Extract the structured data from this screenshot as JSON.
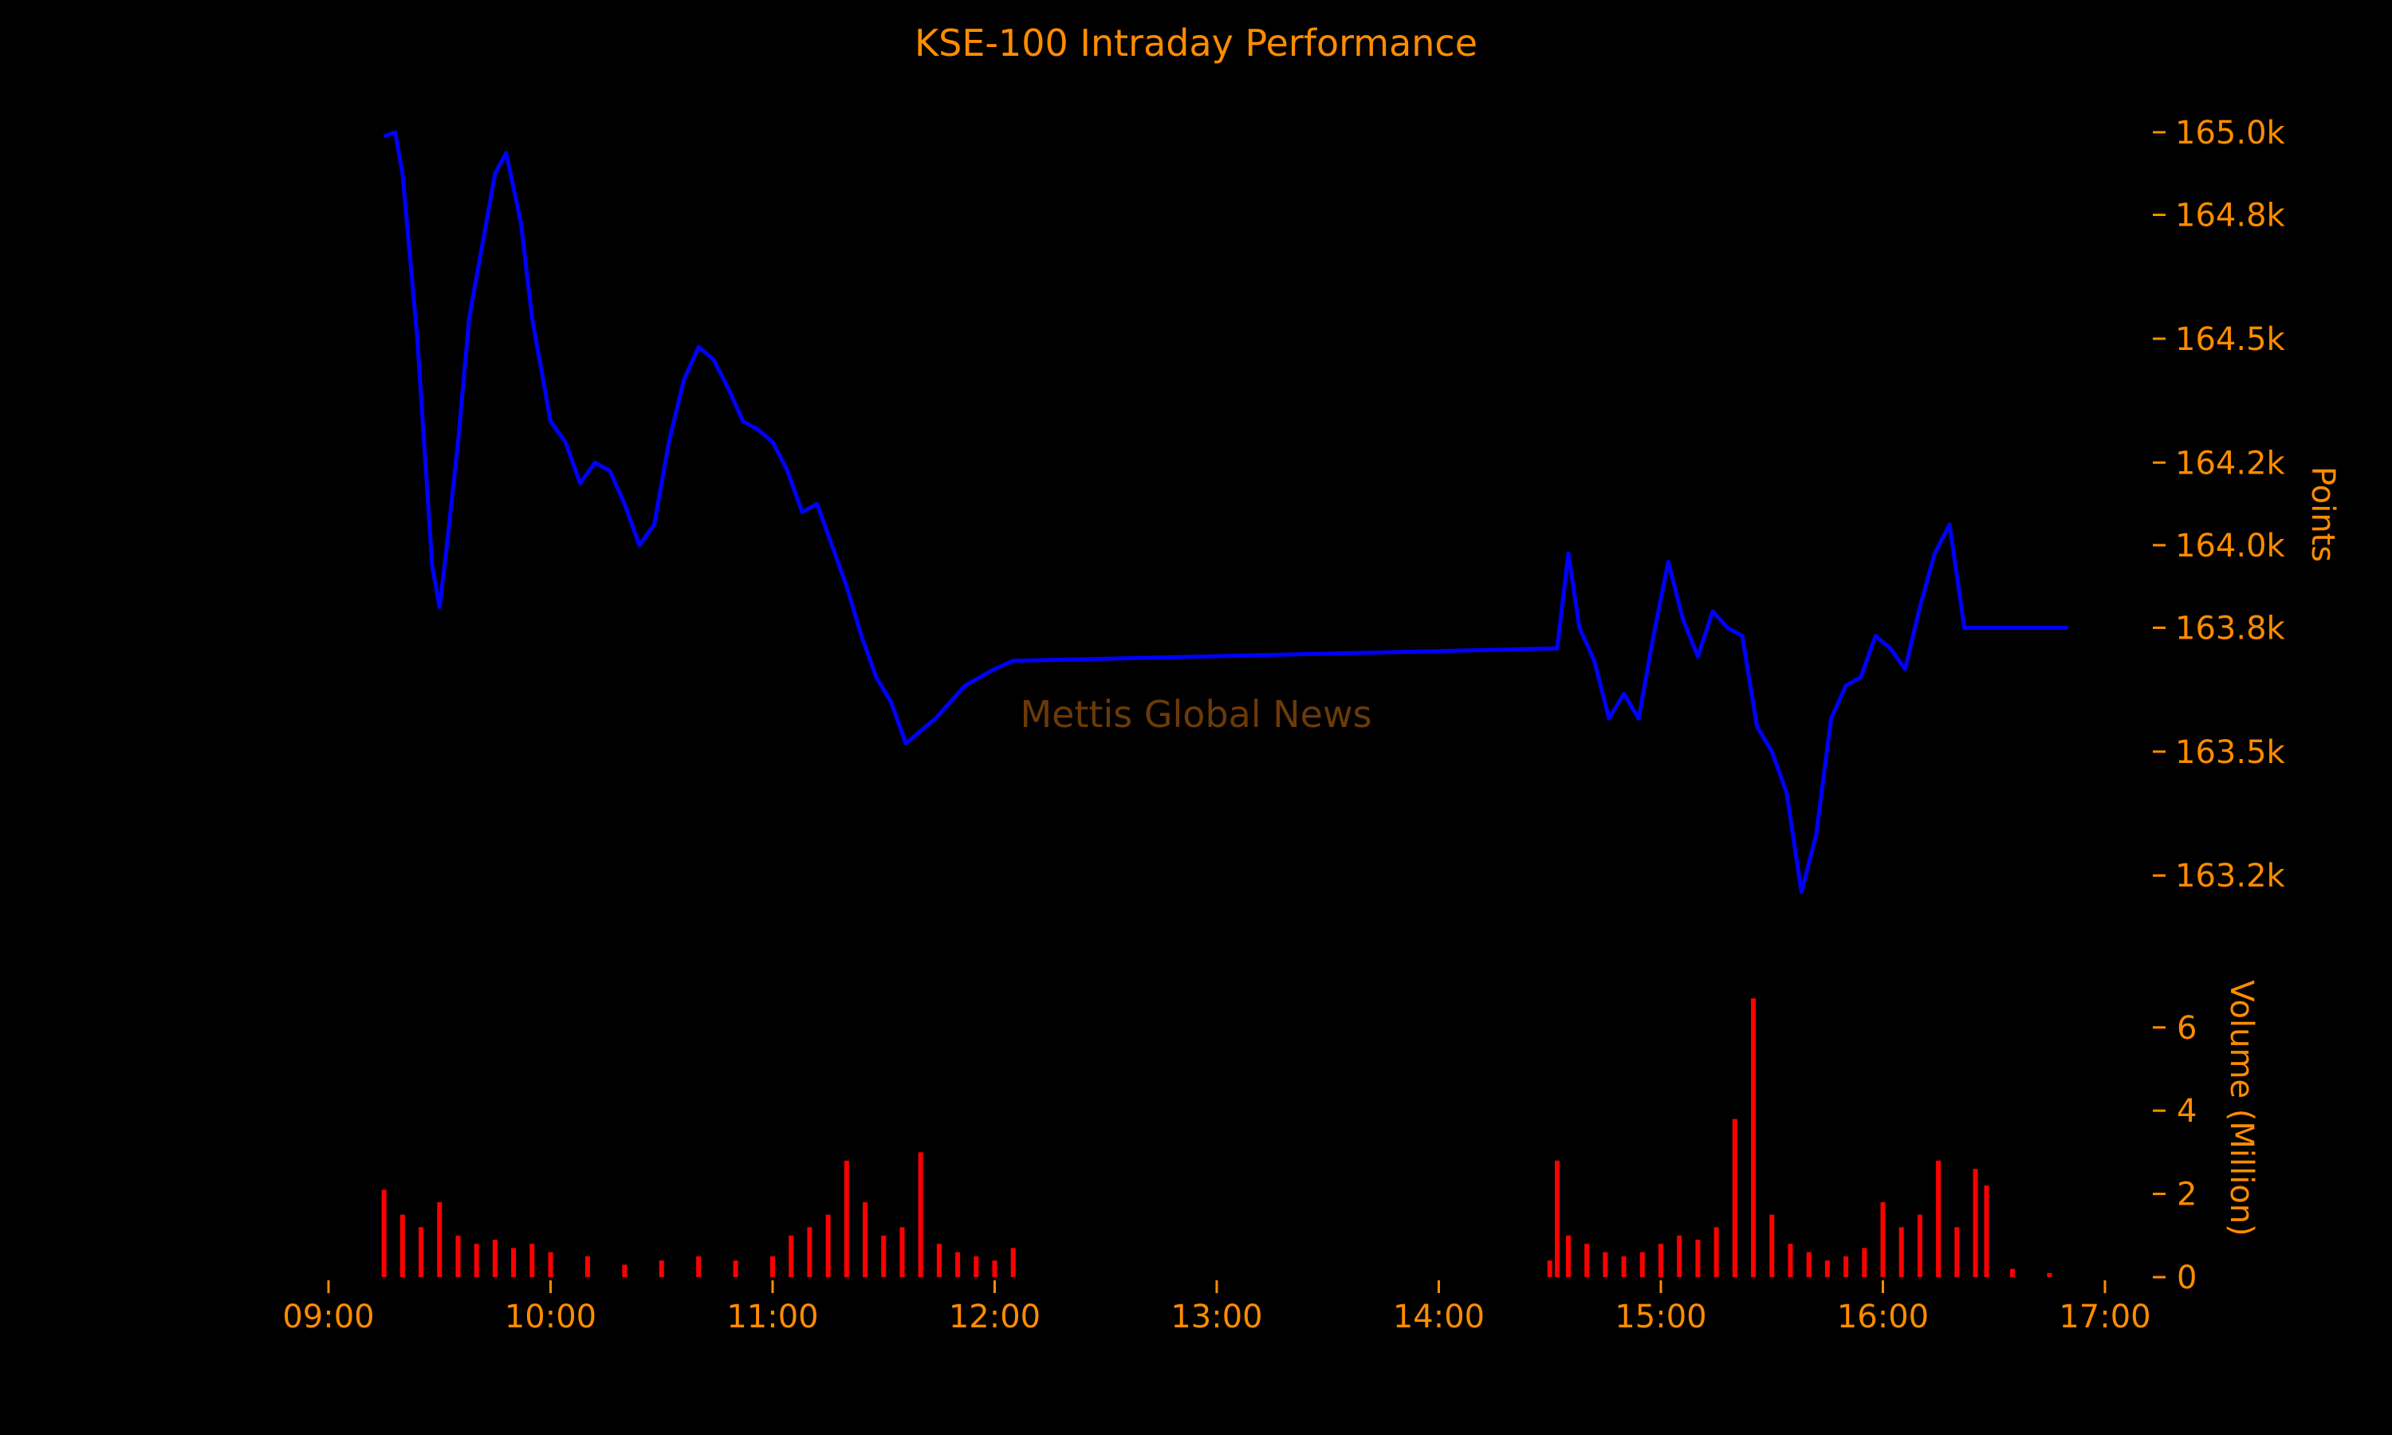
{
  "chart_data": [
    {
      "type": "line",
      "title": "KSE-100 Intraday Performance",
      "ylabel": "Points",
      "ylim": [
        163100,
        165050
      ],
      "yticks": [
        163200,
        163500,
        163800,
        164000,
        164200,
        164500,
        164800,
        165000
      ],
      "ytick_labels": [
        "163.2k",
        "163.5k",
        "163.8k",
        "164.0k",
        "164.2k",
        "164.5k",
        "164.8k",
        "165.0k"
      ],
      "grid": false,
      "series": [
        {
          "color": "#0000ff",
          "x": [
            "09:15",
            "09:18",
            "09:20",
            "09:24",
            "09:28",
            "09:30",
            "09:32",
            "09:35",
            "09:38",
            "09:42",
            "09:45",
            "09:48",
            "09:52",
            "09:55",
            "10:00",
            "10:04",
            "10:08",
            "10:12",
            "10:16",
            "10:20",
            "10:24",
            "10:28",
            "10:32",
            "10:36",
            "10:40",
            "10:44",
            "10:48",
            "10:52",
            "10:56",
            "11:00",
            "11:04",
            "11:08",
            "11:12",
            "11:16",
            "11:20",
            "11:24",
            "11:28",
            "11:32",
            "11:36",
            "11:40",
            "11:44",
            "11:48",
            "11:52",
            "11:56",
            "12:00",
            "12:05",
            "14:32",
            "14:35",
            "14:38",
            "14:42",
            "14:46",
            "14:50",
            "14:54",
            "14:58",
            "15:02",
            "15:06",
            "15:10",
            "15:14",
            "15:18",
            "15:22",
            "15:26",
            "15:30",
            "15:34",
            "15:38",
            "15:42",
            "15:46",
            "15:50",
            "15:54",
            "15:58",
            "16:02",
            "16:06",
            "16:10",
            "16:14",
            "16:18",
            "16:22",
            "16:26",
            "16:30",
            "16:30",
            "16:50"
          ],
          "y": [
            164990,
            165000,
            164900,
            164500,
            163950,
            163850,
            164000,
            164250,
            164550,
            164750,
            164900,
            164950,
            164780,
            164550,
            164300,
            164250,
            164150,
            164200,
            164180,
            164100,
            164000,
            164050,
            164250,
            164400,
            164480,
            164450,
            164380,
            164300,
            164280,
            164250,
            164180,
            164080,
            164100,
            164000,
            163900,
            163780,
            163680,
            163620,
            163520,
            163550,
            163580,
            163620,
            163660,
            163680,
            163700,
            163720,
            163750,
            163980,
            163800,
            163720,
            163580,
            163640,
            163580,
            163780,
            163960,
            163820,
            163730,
            163840,
            163800,
            163780,
            163560,
            163500,
            163400,
            163160,
            163300,
            163580,
            163660,
            163680,
            163780,
            163750,
            163700,
            163850,
            163980,
            164050,
            163800,
            163800,
            163800,
            163800,
            163800
          ]
        }
      ]
    },
    {
      "type": "bar",
      "ylabel": "Volume (Million)",
      "ylim": [
        0,
        6.8
      ],
      "yticks": [
        0,
        2,
        4,
        6
      ],
      "ytick_labels": [
        "0",
        "2",
        "4",
        "6"
      ],
      "xlabel": "",
      "xticks": [
        "09:00",
        "10:00",
        "11:00",
        "12:00",
        "13:00",
        "14:00",
        "15:00",
        "16:00",
        "17:00"
      ],
      "grid": false,
      "series": [
        {
          "color": "#ff0000",
          "x": [
            "09:15",
            "09:20",
            "09:25",
            "09:30",
            "09:35",
            "09:40",
            "09:45",
            "09:50",
            "09:55",
            "10:00",
            "10:10",
            "10:20",
            "10:30",
            "10:40",
            "10:50",
            "11:00",
            "11:05",
            "11:10",
            "11:15",
            "11:20",
            "11:25",
            "11:30",
            "11:35",
            "11:40",
            "11:45",
            "11:50",
            "11:55",
            "12:00",
            "12:05",
            "14:30",
            "14:32",
            "14:35",
            "14:40",
            "14:45",
            "14:50",
            "14:55",
            "15:00",
            "15:05",
            "15:10",
            "15:15",
            "15:20",
            "15:25",
            "15:30",
            "15:35",
            "15:40",
            "15:45",
            "15:50",
            "15:55",
            "16:00",
            "16:05",
            "16:10",
            "16:15",
            "16:20",
            "16:25",
            "16:28",
            "16:35",
            "16:45"
          ],
          "y": [
            2.1,
            1.5,
            1.2,
            1.8,
            1.0,
            0.8,
            0.9,
            0.7,
            0.8,
            0.6,
            0.5,
            0.3,
            0.4,
            0.5,
            0.4,
            0.5,
            1.0,
            1.2,
            1.5,
            2.8,
            1.8,
            1.0,
            1.2,
            3.0,
            0.8,
            0.6,
            0.5,
            0.4,
            0.7,
            0.4,
            2.8,
            1.0,
            0.8,
            0.6,
            0.5,
            0.6,
            0.8,
            1.0,
            0.9,
            1.2,
            3.8,
            6.7,
            1.5,
            0.8,
            0.6,
            0.4,
            0.5,
            0.7,
            1.8,
            1.2,
            1.5,
            2.8,
            1.2,
            2.6,
            2.2,
            0.2,
            0.1
          ]
        }
      ]
    }
  ],
  "watermark": "Mettis Global News",
  "colors": {
    "background": "#000000",
    "text": "#ff8c00",
    "line": "#0000ff",
    "volume": "#ff0000",
    "watermark": "#6b3a08"
  }
}
